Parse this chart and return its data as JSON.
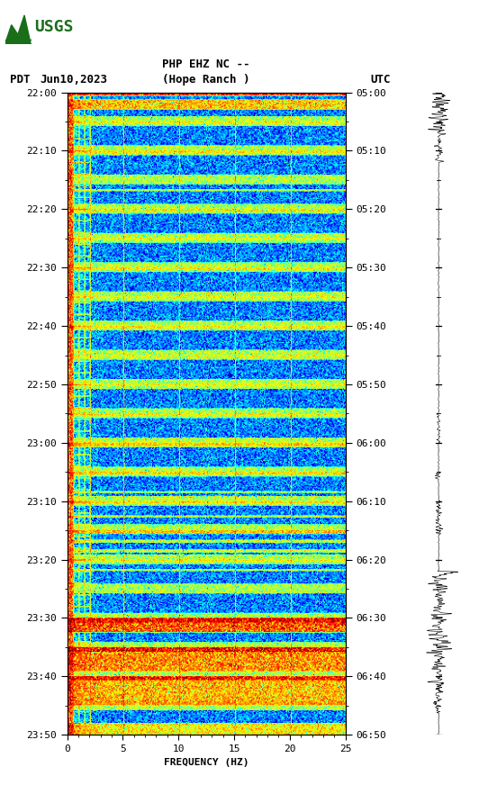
{
  "title_line1": "PHP EHZ NC --",
  "title_line2": "(Hope Ranch )",
  "pdt_label": "PDT",
  "date_label": "Jun10,2023",
  "utc_label": "UTC",
  "left_yticks": [
    "22:00",
    "22:10",
    "22:20",
    "22:30",
    "22:40",
    "22:50",
    "23:00",
    "23:10",
    "23:20",
    "23:30",
    "23:40",
    "23:50"
  ],
  "right_yticks": [
    "05:00",
    "05:10",
    "05:20",
    "05:30",
    "05:40",
    "05:50",
    "06:00",
    "06:10",
    "06:20",
    "06:30",
    "06:40",
    "06:50"
  ],
  "xticks": [
    0,
    5,
    10,
    15,
    20,
    25
  ],
  "xlabel": "FREQUENCY (HZ)",
  "background_color": "#ffffff",
  "spectrogram_seed": 42
}
